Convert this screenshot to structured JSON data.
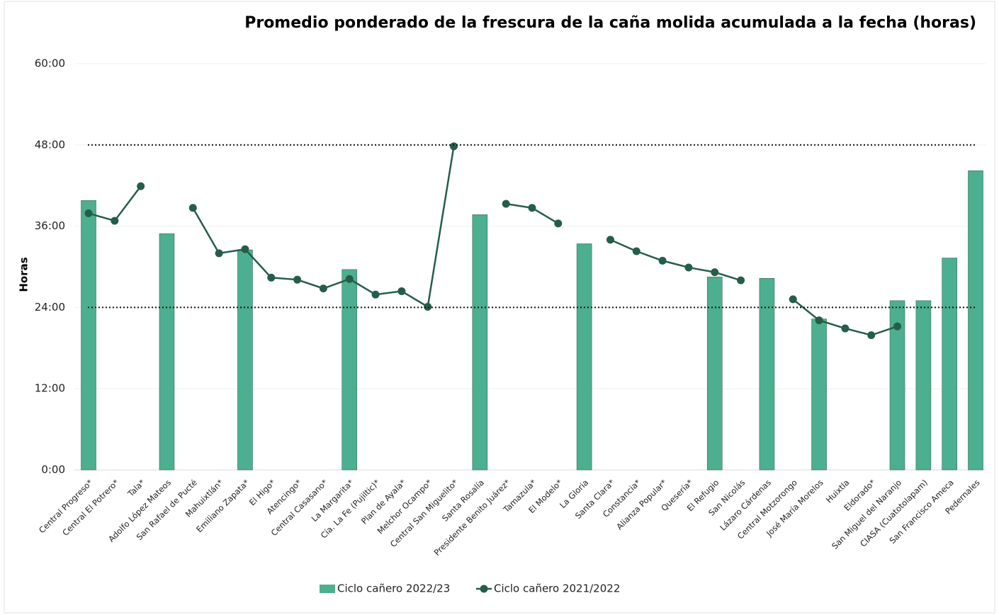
{
  "chart_data": {
    "type": "bar_line",
    "title": "Promedio ponderado de la frescura de la caña molida acumulada a la fecha (horas)",
    "y_label": "Horas",
    "categories": [
      "Central Progreso*",
      "Central El Potrero*",
      "Tala*",
      "Adolfo López Mateos",
      "San Rafael de Pucté",
      "Mahuixtlán*",
      "Emiliano Zapata*",
      "El Higo*",
      "Atencingo*",
      "Central Casasano*",
      "La Margarita*",
      "Cía. La Fe (Pujiltic)*",
      "Plan de Ayala*",
      "Melchor Ocampo*",
      "Central San Miguelito*",
      "Santa Rosalía",
      "Presidente Benito Juárez*",
      "Tamazula*",
      "El Modelo*",
      "La Gloria",
      "Santa Clara*",
      "Constancia*",
      "Alianza Popular*",
      "Quesería*",
      "El Refugio",
      "San Nicolás",
      "Lázaro Cárdenas",
      "Central Motzorongo",
      "José María Morelos",
      "Huixtla",
      "Eldorado*",
      "San Miguel del Naranjo",
      "CIASA (Cuatotolapam)",
      "San Francisco Ameca",
      "Pedernales"
    ],
    "series": [
      {
        "name": "Ciclo cañero 2022/23",
        "type": "bar",
        "color": "#4caf8f",
        "values": [
          39.8,
          null,
          null,
          34.9,
          null,
          null,
          32.5,
          null,
          null,
          null,
          29.6,
          null,
          null,
          null,
          null,
          37.7,
          null,
          null,
          null,
          33.4,
          null,
          null,
          null,
          null,
          28.5,
          null,
          28.3,
          null,
          22.3,
          null,
          null,
          25.0,
          25.0,
          31.3,
          44.2
        ]
      },
      {
        "name": "Ciclo cañero 2021/2022",
        "type": "line",
        "color": "#255e48",
        "values": [
          37.9,
          36.8,
          41.9,
          null,
          38.7,
          32.0,
          32.6,
          28.4,
          28.1,
          26.8,
          28.2,
          25.9,
          26.4,
          24.1,
          47.8,
          null,
          39.3,
          38.7,
          36.4,
          null,
          34.0,
          32.3,
          30.9,
          29.9,
          29.2,
          28.0,
          null,
          25.2,
          22.1,
          20.9,
          19.9,
          21.2,
          null,
          null,
          null
        ]
      }
    ],
    "ylim": [
      0,
      60
    ],
    "yticks": [
      {
        "value": 0,
        "label": "0:00"
      },
      {
        "value": 12,
        "label": "12:00"
      },
      {
        "value": 24,
        "label": "24:00"
      },
      {
        "value": 36,
        "label": "36:00"
      },
      {
        "value": 48,
        "label": "48:00"
      },
      {
        "value": 60,
        "label": "60:00"
      }
    ],
    "reference_lines": [
      48,
      24
    ],
    "grid": true,
    "legend": "bottom"
  }
}
